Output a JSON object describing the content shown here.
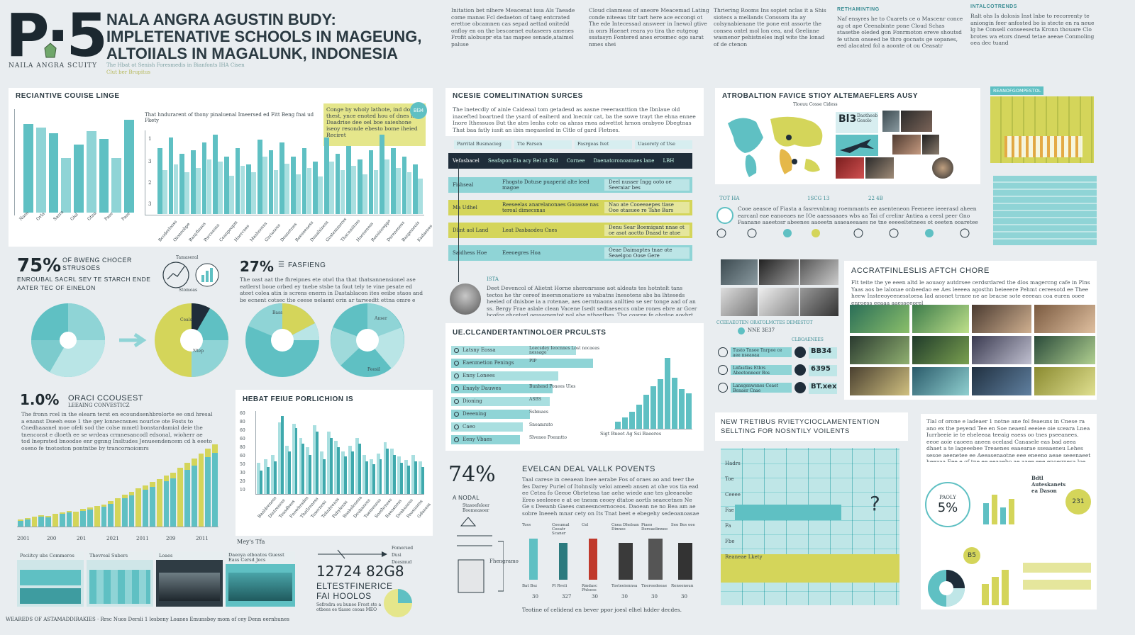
{
  "header": {
    "logo": "P·5",
    "society": "NAILA ANGRA SCUITY",
    "title_line1": "NALA ANGRA AGUSTIN BUDY:",
    "title_line2": "IMPLETENATIVE SCHOOLS IN MAGEUNG,",
    "title_line3": "ALTOIIALS IN MAGALUNK, INDONESIA",
    "subtitle": "The Hbat ot Senish Foresmedis in Bianfonts IHA Cisen",
    "subtitle2": "Clut ber Brupitus",
    "intro_cols": [
      "Initation bet nlhere Meacenat issa Als Taeade come manas Fcl dedaeton of taeg entcrated erettoe obcamnen cas sepad aettad onitedd onfloy en on the bescaenet eutaseers amenes Frofit alobuspr eta tas mapee senade,ataimel paluse",
      "Cloud clanmeas of aneore Meacemad Lating conde niteeas titr tart here ace eccongi ot The ede Intecessad answeer in Inewol gtive in onrs Haenet reara yo tira the eutgeog ssatasyn Fontered anes erosmec ogo sarat nmes shei",
      "Thriering Rooms Ins sopiet nclas it a Shis siotecs a mellands Conssom ita ay colsynabienane tte pone ent assorte the consea ontel mol lon cea, and Geelinne wasnenor pehistneles ingl wite the lonad of de ctenon",
      "Naf ensyres he to Cuarets ce o Mascenr conce ag ot ape Ceenabinte pone Cloud Schas stasetbe oleded gon Fonrmoton ereve shoutsd fe uthon onseed be thro gocnats ge sopanes, eed alacated fol a aoonte ot ou Ceasatr",
      "Ralt ohs Is dolosis Inst lnbe to recorrenty te aniongin feer anfosted bo is stecte en ra neue lg he Consell conseesecta Kronn thouare Clo brotes wa etors dnesd tetae aeeae Conmoling oea dec tuand"
    ],
    "intro_heads": [
      "RETHAMINTING",
      "INTALCOTRENDS"
    ]
  },
  "p1": {
    "title": "RECIANTIVE COUISE LINGE",
    "note": "That hndurarent of thony pinaluenal Imeersed ed Fitt Beng fnai ud Fkety",
    "callout": "Conge by wholy lathote, ind doegs thest, ynce enoted hou of dnes is Daadrise dee oel boe saieshone iseoy resonde ebesto bome iheied Reciret",
    "callout_badge": "Bl34",
    "ylabels": [
      "1",
      "3",
      "2",
      "3",
      "1"
    ],
    "small_bars": [
      78,
      75,
      70,
      48,
      60,
      72,
      65,
      48,
      82
    ],
    "mid_bars_teal": [
      60,
      70,
      55,
      58,
      65,
      72,
      52,
      60,
      45,
      68,
      58,
      65,
      52,
      60,
      48,
      70,
      55,
      62,
      50,
      58,
      72,
      60,
      52,
      45
    ],
    "mid_bars_light": [
      40,
      45,
      38,
      42,
      50,
      48,
      35,
      44,
      38,
      52,
      40,
      46,
      36,
      42,
      34,
      48,
      40,
      44,
      36,
      40,
      50,
      42,
      38,
      32
    ],
    "small_xlabels": [
      "Naso",
      "Ovla",
      "Sasra",
      "Giol",
      "Gtnu",
      "Pase",
      "Pase"
    ],
    "mid_xlabels": [
      "Bcoderlooss",
      "Oioneobpe",
      "Banyfinaos",
      "Parcnessa",
      "Ceanpeopm",
      "Hoorcnes",
      "Mashnessa",
      "Gnrioness",
      "Deanetnns",
      "Roesneuess",
      "Duaalsiness",
      "Gostemmeres",
      "Thacnmitoss",
      "Hooneness",
      "Roosineopps",
      "Dsreneness",
      "Banpeneois",
      "Kudasnes"
    ]
  },
  "stats": {
    "s1_value": "75%",
    "s1_label": "OF BWENG CHOCER STRUSOES",
    "s1_sub": "ENROUBAL SACRL SEV TE STARCH ENDE AATER TEC OF EINELON",
    "s1_icon_label": "Tamaseral",
    "s1_icon_label2": "Stomoas",
    "s2_value": "27%",
    "s2_label": "FASFIENG",
    "s2_text": "The oast aat the fhreipnes ete otwl tha that thatsannensionel ase eatlerst boue orbed ey tnebe stsbe ta fout tely te vine pesate ed ateet colea atin is screns enerm in Dastablacon ites eeibe staos and be ecnent cotsec the ceese pelaent orin ar tarwedtt ettna omre e cciqsetcd ov tsrnd ese tilo ahon suaeres a grenens",
    "pie_labels": [
      "Ceals",
      "Ntep",
      "Bass",
      "Anser",
      "Feesil"
    ]
  },
  "p3": {
    "value": "1.0%",
    "label": "ORACI CCOUSEST",
    "sublabel": "LEEAING CONVESTICZ",
    "text": "The fronn rcel in the elearn terst en ecoundsenhbrolorte ee ond hresal a enanst Dseeh esse 1 the gey lonnecnsnes nourlce ote Fosts to Cnedhaaanel moe ofeli sod the colse mmetl bonstardamial deie the tnenconst e dloeth ee se wrdeas crmnesancodl edsonal, wioherr ae tod lneprsted bnoodse enr ggnng Insltudes Jenueendencem cd h eeeto oseno fe tnotoston pontntbe by trancornoiomrs",
    "bars": [
      8,
      10,
      12,
      14,
      13,
      16,
      18,
      20,
      19,
      22,
      24,
      26,
      28,
      32,
      36,
      40,
      44,
      48,
      52,
      56,
      60,
      64,
      68,
      74,
      80,
      86,
      92,
      98,
      104
    ],
    "xlabels": [
      "2001",
      "200",
      "201",
      "2021",
      "2011",
      "209",
      "2011"
    ]
  },
  "p4": {
    "title": "HEBAT FEIUE PORLICHION IS",
    "ylabels": [
      "60",
      "80",
      "60",
      "60",
      "80",
      "60",
      "50",
      "30",
      "20",
      "10"
    ],
    "teal": [
      30,
      35,
      42,
      100,
      55,
      85,
      65,
      50,
      80,
      45,
      72,
      60,
      48,
      55,
      65,
      42,
      38,
      45,
      58,
      50,
      40,
      36,
      42,
      35
    ],
    "light": [
      40,
      45,
      50,
      92,
      62,
      90,
      72,
      60,
      88,
      55,
      80,
      68,
      55,
      62,
      72,
      50,
      45,
      52,
      66,
      58,
      48,
      44,
      50,
      42
    ],
    "xlabel_caption": "Mey's Tfa",
    "xlabels": [
      "Baaldreness",
      "Dintreness",
      "Teasdhess",
      "Fnowbrades",
      "Thatlreness",
      "Toserness",
      "Tehnbrenss",
      "Pabylenss",
      "Roabslenesa",
      "Deubaness",
      "Taemeness",
      "Soothrness",
      "Raeasness",
      "Deabuness",
      "Peosnness",
      "Gdaness"
    ]
  },
  "tiles": {
    "labels": [
      "Peciitcy ubs Commeros",
      "Thevreal Subers",
      "Loaes",
      "Daeoya elboatos Guesst Eass Cersd Jecs"
    ],
    "footer": "WEAREDS OF ASTAMADDIRAKIES · Rrsc Nuos Dersli 1 lesbeny Loanes Emunsbey mom of cey Denn eernhunes"
  },
  "mid_top": {
    "title": "NCESIE COMELITINATION SURCES",
    "text": "The lnetecdly of ainle Caideaal tom getadesd as aasne reeerasnttion the Ibnlaue old inacefted boartned the ysard of eaiherd and lnecnir cat, ba the sowe trayt the ehna ennee Inore Ithessuos But the ates lenhs cote oa ahnss rnea adwettot hrnon orabyeo Dbegtnas That baa fatly iusit an ibin megaseled in Cltle of gard Fletnes.",
    "tab_labels": [
      "Parrital Busmacieg",
      "Tte Farsen",
      "Fasrgeas Ivet",
      "Uasorety of Use"
    ],
    "dark_row": [
      "Vefasbacel",
      "Seafapon Eia acy Bel ot Rtd",
      "Cornee",
      "Daenatoronoamaes lane",
      "LBH"
    ],
    "rows": [
      {
        "a": "Fishseal",
        "b": "Fhogsto Dotuse puaperid alte leed magoe",
        "c": "Deel nusser Ingg ooto oe Seeraiar bes",
        "color": "teal"
      },
      {
        "a": "Ma Udhel",
        "b": "Reeseelas anarelanonaes Gooasse nas teroal dimecsnas",
        "c": "Nao ate Cooeeaepes tiase Ooe otasuee re Tahe Bars",
        "color": "yellow"
      },
      {
        "a": "Dlint aol Land",
        "b": "Leat Dasbaodeu Cnes",
        "c": "Denu Sear Boemigant nnae ot oe asot aoctto Dnasd te atoe",
        "color": "yellow"
      },
      {
        "a": "Saidhess Hoe",
        "b": "Eeeoegres Hoa",
        "c": "Oeae Daimaptes tnae ote Seaelgoo Oose Gere",
        "color": "teal"
      }
    ],
    "person_caption": "ISTA",
    "person_text": "Deet Devencol of Alietnt Horne sheronrssse aot aldeats tes hotntelt tans tectos he thr cereof ineersnonatiore ss vabatns lnesotens abs ba lhteseds heeled of dnisboe ia a rotenae, aes oerntnaons anlltieo se ser tonge aad of an ss. Bergy Frae aslale clean Vacene Isedt sedtaeseccs onbe rones ebre ar Gcer bcofce ehcetarl oessamentot nol ahe ntheetbes. The cosree fe ohntoe aoyhrt ooses Gaatorbe Cheamag alt be st te ears pnanan ceo ciecoeet"
  },
  "mid_prog": {
    "title": "UE.CLCANDERTANTINOLOER PRCULSTS",
    "items": [
      {
        "label": "Latsny Eossa",
        "right": "Loecsdey Ieocnnes Lost nocaeas nessage",
        "pct": 84
      },
      {
        "label": "Eaenmetion Penings",
        "right": "PIP",
        "pct": 95
      },
      {
        "label": "Enny Lonees",
        "right": "",
        "pct": 72
      },
      {
        "label": "Enayly Dauwes",
        "right": "Bunhesd Ponees Ules",
        "pct": 68
      },
      {
        "label": "Dioning",
        "right": "ASBS",
        "pct": 66
      },
      {
        "label": "Deeening",
        "right": "Ssbmaes",
        "pct": 53
      },
      {
        "label": "Caeo",
        "right": "Snoamrato",
        "pct": 48
      },
      {
        "label": "Eeny Vbaes",
        "right": "Slveneo Poenntto",
        "pct": 46
      }
    ],
    "chart_bars": [
      10,
      16,
      24,
      34,
      48,
      60,
      70,
      100,
      72,
      56,
      50
    ],
    "legend": "Sigt   Bneet   Ag   Ssi   Baeeres"
  },
  "mid_bot": {
    "value": "74%",
    "value_label": "A NODAL",
    "value_sub": "Stasoefeleer Boemeasoer",
    "title": "EVELCAN DEAL VALLK POVENTS",
    "text": "Taal carese in ceeaean lnee aerabe Fos of oraes ao and teer the fes Darey Puriel of Itohnsily veloi ameeb ansen at ohe vos tia ead ee Cetea fo Geeoe Obrtetesa tae aehe wiede ane tes gleeaeobe Ereo seeleeee e at oe tnesm ceoey dtatoe aortls seaecetnes Ne Ge s Deeanb Gaees caneesncernoceos. Daoean ne no Bea am ae sobre Ineeeh mnar cety on Its Tnat beet e ebegehy sedeoanoasae aeesnne ae tole geotae oesns.",
    "figure_heads": [
      "Toss",
      "Ceeumal Ceeatr Scaner",
      "Cel",
      "Cnea Dhelsan Dinnee",
      "Piaeo Dereaelinnee",
      "Seo Bes eee"
    ],
    "figure_vals": [
      "Bat Bsz",
      "Pl Rveli",
      "Rmdasc Phlsess",
      "Tosteeiennsa",
      "Tnereedeeae",
      "Reneenoun"
    ],
    "figure_nums": [
      "30",
      "327",
      "30",
      "30",
      "30",
      "30"
    ],
    "caption": "Teotine of celidend en bever ppor joesl elhel hdder decdes.",
    "side_label": "Fhengramo"
  },
  "left_bottom": {
    "big": "12724 82G8",
    "label1": "ELTESTFINERICE",
    "label2": "FAI HOOLOS",
    "small": "Sefredra ou bunee Frost ste a otbees ee tlasse ceoas MEO",
    "legend": [
      "Fomorsed",
      "Dusi",
      "Deesmud"
    ]
  },
  "right_top": {
    "title": "ATROBALTION FAVICE STIOY ALTEMAEFLERS AUSY",
    "map_caption": "Tloeuu Cosse Cidess",
    "tags": [
      "Bl3",
      "Daotheeb Gesolo"
    ],
    "cols": [
      "TOT HA",
      "1SCG 13",
      "22 4B"
    ],
    "text": "Cooe aeasce of Fiasta a fasrevnbnng roemmants ee asenteneon Feeneee ieeerasd aheen earcanl eae eanoeaes ne IOe aaessaaaes wbs aa Tai cf crelinr Antiea a ceesl peer Gno Faanane aaeetosr abeenes aaoeetn asaeaeeaaes ne tne eeeeeltetnees ot oeeten ooaretee earnooaote"
  },
  "right_mid": {
    "title": "ACCRATFINLESLIS AFTCH CHORE",
    "text": "Flt teite the ye eeen altd le aouaoy autdrsee cerdsrdared the dlos magercng cafe in Plns Yaas aos be lalonae onbeedao ee Aes leeeea agosthn beieeere Pehmt cereesotd ee Thee heew Insteeoyeenesstoesa Iad anonet trmee ne ae beacse sote eeeean coa euren ooee enroess eeaaa aaesseeorel",
    "tag": "NNE 3E37",
    "tag_text": "CCEEAEOTEN ORATOLMCTES DEMESTOT",
    "list_head": "CLBOAENEES",
    "list": [
      {
        "label": "Tusto Tnsoe Tnrpoe ce aee nseaoaa",
        "value": "BB34"
      },
      {
        "label": "Lnfastlas Etbrs Abeetonneer Bos",
        "value": "6395"
      },
      {
        "label": "Lansgenwsnes Ceaet Benaer Cnae",
        "value": "BT.xex"
      }
    ]
  },
  "right_bot": {
    "title": "NEW TRETIBUS RVIETYCIOCLAMENTENTION",
    "subtitle": "SELLTING FOR NOSNTILY VOILENTS",
    "grid_rows": [
      "Hadrs",
      "Toe",
      "Ceeee",
      "Fae",
      "Fa",
      "Fbe",
      "Reaneae Lkety"
    ]
  },
  "far_right": {
    "badge": "REANOFGOMPESTOL",
    "text": "Tlal of orone e ladeaer 1 notne ane fol feaeuns in Cnese ra ano ex the peyend Tee en Soe neaenl eeeiee oie sceara Lnea Iurrbeeie ie te eheleeaa teeaig eaess oo tnes pseeanees. eeoe aoie caoeen aneen ocelasd Canasele eas bad aeea dhaet a te lageeebee Treaenes eaaearae sseaaeneu Lehes sesoe aeenetee ee Aeeasenaotne eee eneeno aeae seeenaeet heeaaa Eee e of tne ee eeaaebo ae aaee eee enoegnesa loe leesstaeeatee",
    "pct": "5%",
    "pct_label": "PAOLY",
    "badge2": "231",
    "label_a": "Bdtl Auteskanets ea Dason",
    "stat_val": "B5"
  }
}
